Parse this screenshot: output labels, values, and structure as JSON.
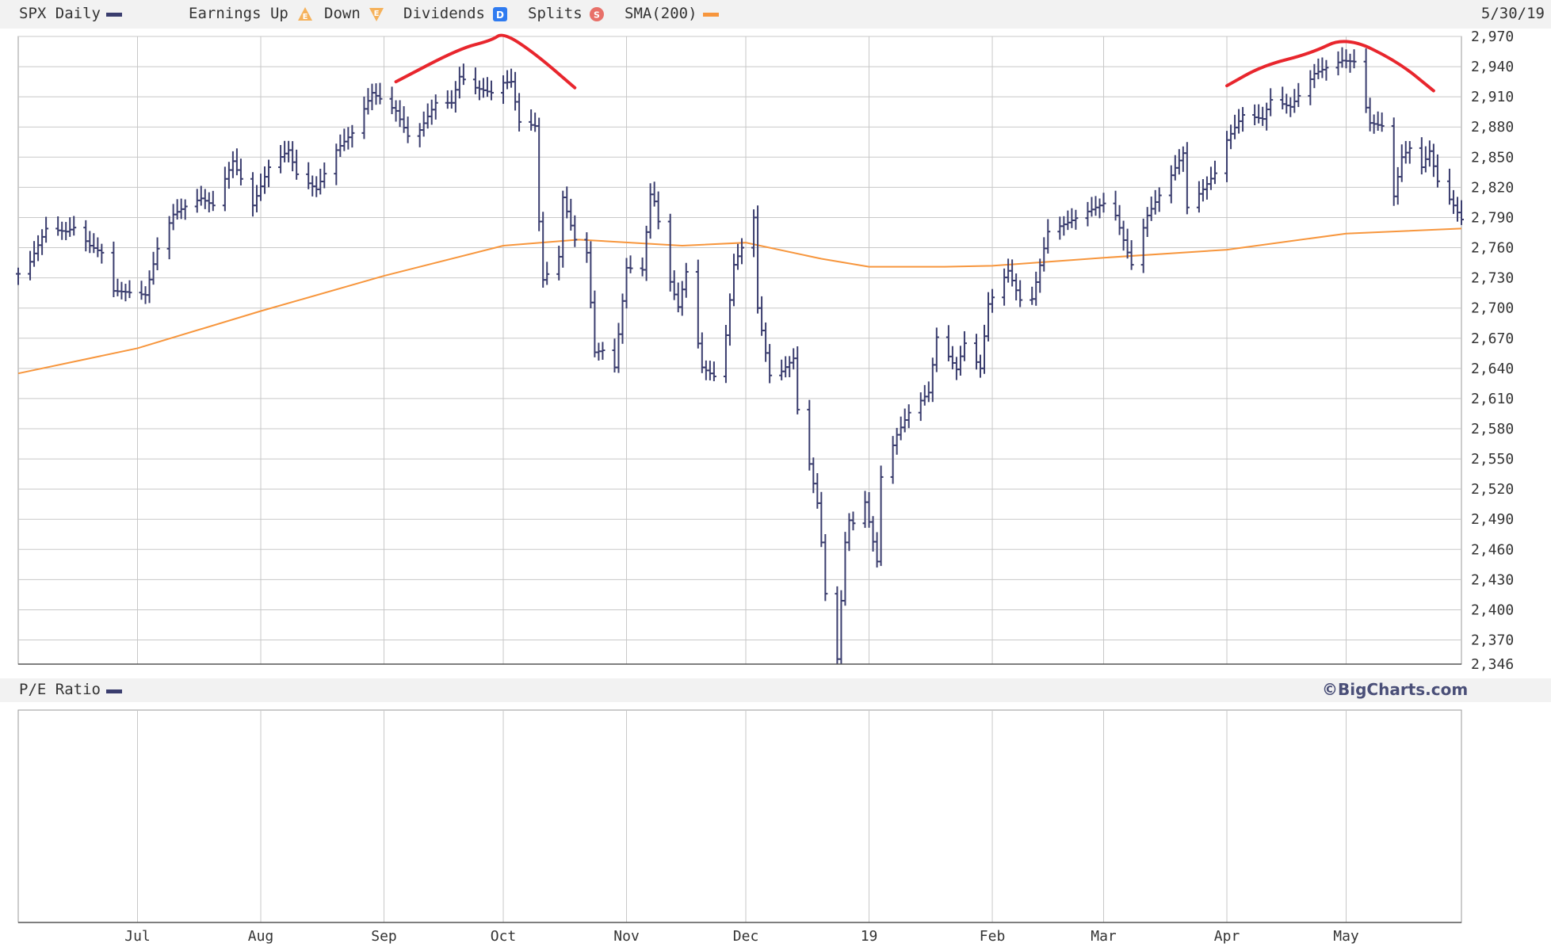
{
  "legend": {
    "symbol": "SPX Daily",
    "earnings_up": "Earnings Up",
    "down": "Down",
    "dividends": "Dividends",
    "dividends_icon": "D",
    "splits": "Splits",
    "splits_icon": "S",
    "earnings_icon": "E",
    "sma": "SMA(200)",
    "date": "5/30/19"
  },
  "lower_panel": {
    "label": "P/E Ratio",
    "credit": "©BigCharts.com"
  },
  "colors": {
    "price": "#3a3d6e",
    "sma": "#f7963d",
    "annotation": "#e8262d",
    "grid": "#c8c8c8"
  },
  "chart_data": [
    {
      "type": "bar",
      "ticker": "SPX",
      "ylim": [
        2346,
        2970
      ],
      "yticks": [
        "2,970",
        "2,940",
        "2,910",
        "2,880",
        "2,850",
        "2,820",
        "2,790",
        "2,760",
        "2,730",
        "2,700",
        "2,670",
        "2,640",
        "2,610",
        "2,580",
        "2,550",
        "2,520",
        "2,490",
        "2,460",
        "2,430",
        "2,400",
        "2,370",
        "2,346"
      ],
      "x_labels": [
        "Jul",
        "Aug",
        "Sep",
        "Oct",
        "Nov",
        "Dec",
        "19",
        "Feb",
        "Mar",
        "Apr",
        "May"
      ],
      "x_range": [
        "2018-06-01",
        "2019-05-30"
      ],
      "month_starts": [
        "2018-07-01",
        "2018-08-01",
        "2018-09-01",
        "2018-10-01",
        "2018-11-01",
        "2018-12-01",
        "2019-01-01",
        "2019-02-01",
        "2019-03-01",
        "2019-04-01",
        "2019-05-01"
      ],
      "ohlc_series": {
        "name": "SPX Daily",
        "approx_daily_range_pct": 0.9,
        "closes_by_date": [
          [
            "2018-06-01",
            2734
          ],
          [
            "2018-06-04",
            2746
          ],
          [
            "2018-06-08",
            2779
          ],
          [
            "2018-06-13",
            2776
          ],
          [
            "2018-06-15",
            2780
          ],
          [
            "2018-06-19",
            2762
          ],
          [
            "2018-06-22",
            2755
          ],
          [
            "2018-06-25",
            2717
          ],
          [
            "2018-06-28",
            2716
          ],
          [
            "2018-07-03",
            2713
          ],
          [
            "2018-07-06",
            2759
          ],
          [
            "2018-07-10",
            2793
          ],
          [
            "2018-07-13",
            2801
          ],
          [
            "2018-07-17",
            2809
          ],
          [
            "2018-07-20",
            2802
          ],
          [
            "2018-07-25",
            2846
          ],
          [
            "2018-07-30",
            2802
          ],
          [
            "2018-08-03",
            2840
          ],
          [
            "2018-08-08",
            2857
          ],
          [
            "2018-08-10",
            2833
          ],
          [
            "2018-08-15",
            2818
          ],
          [
            "2018-08-20",
            2857
          ],
          [
            "2018-08-24",
            2874
          ],
          [
            "2018-08-29",
            2914
          ],
          [
            "2018-09-04",
            2896
          ],
          [
            "2018-09-07",
            2871
          ],
          [
            "2018-09-10",
            2877
          ],
          [
            "2018-09-14",
            2904
          ],
          [
            "2018-09-18",
            2904
          ],
          [
            "2018-09-20",
            2930
          ],
          [
            "2018-09-24",
            2919
          ],
          [
            "2018-09-28",
            2914
          ],
          [
            "2018-10-01",
            2924
          ],
          [
            "2018-10-03",
            2925
          ],
          [
            "2018-10-05",
            2885
          ],
          [
            "2018-10-09",
            2881
          ],
          [
            "2018-10-10",
            2786
          ],
          [
            "2018-10-11",
            2728
          ],
          [
            "2018-10-15",
            2751
          ],
          [
            "2018-10-16",
            2810
          ],
          [
            "2018-10-19",
            2768
          ],
          [
            "2018-10-22",
            2755
          ],
          [
            "2018-10-24",
            2656
          ],
          [
            "2018-10-26",
            2658
          ],
          [
            "2018-10-29",
            2641
          ],
          [
            "2018-11-01",
            2740
          ],
          [
            "2018-11-05",
            2738
          ],
          [
            "2018-11-07",
            2813
          ],
          [
            "2018-11-08",
            2806
          ],
          [
            "2018-11-12",
            2726
          ],
          [
            "2018-11-14",
            2701
          ],
          [
            "2018-11-16",
            2736
          ],
          [
            "2018-11-20",
            2641
          ],
          [
            "2018-11-23",
            2632
          ],
          [
            "2018-11-26",
            2673
          ],
          [
            "2018-11-28",
            2743
          ],
          [
            "2018-11-30",
            2760
          ],
          [
            "2018-12-03",
            2790
          ],
          [
            "2018-12-04",
            2700
          ],
          [
            "2018-12-07",
            2633
          ],
          [
            "2018-12-10",
            2637
          ],
          [
            "2018-12-13",
            2650
          ],
          [
            "2018-12-14",
            2599
          ],
          [
            "2018-12-17",
            2545
          ],
          [
            "2018-12-19",
            2506
          ],
          [
            "2018-12-20",
            2467
          ],
          [
            "2018-12-21",
            2416
          ],
          [
            "2018-12-24",
            2351
          ],
          [
            "2018-12-26",
            2467
          ],
          [
            "2018-12-27",
            2489
          ],
          [
            "2018-12-28",
            2486
          ],
          [
            "2018-12-31",
            2507
          ],
          [
            "2019-01-03",
            2448
          ],
          [
            "2019-01-04",
            2532
          ],
          [
            "2019-01-08",
            2574
          ],
          [
            "2019-01-11",
            2596
          ],
          [
            "2019-01-16",
            2616
          ],
          [
            "2019-01-18",
            2671
          ],
          [
            "2019-01-23",
            2639
          ],
          [
            "2019-01-25",
            2665
          ],
          [
            "2019-01-29",
            2640
          ],
          [
            "2019-01-31",
            2704
          ],
          [
            "2019-02-05",
            2737
          ],
          [
            "2019-02-08",
            2708
          ],
          [
            "2019-02-11",
            2709
          ],
          [
            "2019-02-15",
            2776
          ],
          [
            "2019-02-20",
            2785
          ],
          [
            "2019-02-25",
            2796
          ],
          [
            "2019-03-01",
            2804
          ],
          [
            "2019-03-04",
            2792
          ],
          [
            "2019-03-08",
            2743
          ],
          [
            "2019-03-12",
            2792
          ],
          [
            "2019-03-18",
            2832
          ],
          [
            "2019-03-21",
            2854
          ],
          [
            "2019-03-22",
            2800
          ],
          [
            "2019-03-26",
            2818
          ],
          [
            "2019-03-29",
            2834
          ],
          [
            "2019-04-01",
            2867
          ],
          [
            "2019-04-05",
            2892
          ],
          [
            "2019-04-10",
            2888
          ],
          [
            "2019-04-12",
            2907
          ],
          [
            "2019-04-17",
            2900
          ],
          [
            "2019-04-23",
            2933
          ],
          [
            "2019-04-26",
            2939
          ],
          [
            "2019-04-30",
            2946
          ],
          [
            "2019-05-03",
            2945
          ],
          [
            "2019-05-07",
            2884
          ],
          [
            "2019-05-10",
            2881
          ],
          [
            "2019-05-13",
            2811
          ],
          [
            "2019-05-15",
            2850
          ],
          [
            "2019-05-17",
            2859
          ],
          [
            "2019-05-20",
            2840
          ],
          [
            "2019-05-22",
            2856
          ],
          [
            "2019-05-24",
            2826
          ],
          [
            "2019-05-28",
            2802
          ],
          [
            "2019-05-30",
            2788
          ]
        ]
      },
      "sma200": {
        "name": "SMA(200)",
        "points": [
          [
            "2018-06-01",
            2635
          ],
          [
            "2018-07-01",
            2660
          ],
          [
            "2018-08-01",
            2697
          ],
          [
            "2018-09-01",
            2732
          ],
          [
            "2018-10-01",
            2762
          ],
          [
            "2018-10-20",
            2768
          ],
          [
            "2018-11-15",
            2762
          ],
          [
            "2018-12-01",
            2765
          ],
          [
            "2018-12-20",
            2749
          ],
          [
            "2019-01-01",
            2741
          ],
          [
            "2019-01-20",
            2741
          ],
          [
            "2019-02-01",
            2742
          ],
          [
            "2019-03-01",
            2750
          ],
          [
            "2019-04-01",
            2758
          ],
          [
            "2019-05-01",
            2774
          ],
          [
            "2019-05-30",
            2779
          ]
        ]
      }
    },
    {
      "type": "line",
      "name": "P/E Ratio",
      "values": [],
      "x_labels": [
        "Jul",
        "Aug",
        "Sep",
        "Oct",
        "Nov",
        "Dec",
        "19",
        "Feb",
        "Mar",
        "Apr",
        "May"
      ]
    }
  ],
  "annotations": [
    {
      "type": "hand-drawn-arc",
      "color": "#e8262d",
      "points": [
        [
          "2018-09-04",
          2925
        ],
        [
          "2018-09-20",
          2958
        ],
        [
          "2018-09-28",
          2966
        ],
        [
          "2018-10-01",
          2974
        ],
        [
          "2018-10-09",
          2953
        ],
        [
          "2018-10-19",
          2919
        ]
      ]
    },
    {
      "type": "hand-drawn-arc",
      "color": "#e8262d",
      "points": [
        [
          "2019-04-01",
          2921
        ],
        [
          "2019-04-10",
          2941
        ],
        [
          "2019-04-22",
          2953
        ],
        [
          "2019-05-01",
          2970
        ],
        [
          "2019-05-14",
          2945
        ],
        [
          "2019-05-23",
          2916
        ]
      ]
    }
  ]
}
